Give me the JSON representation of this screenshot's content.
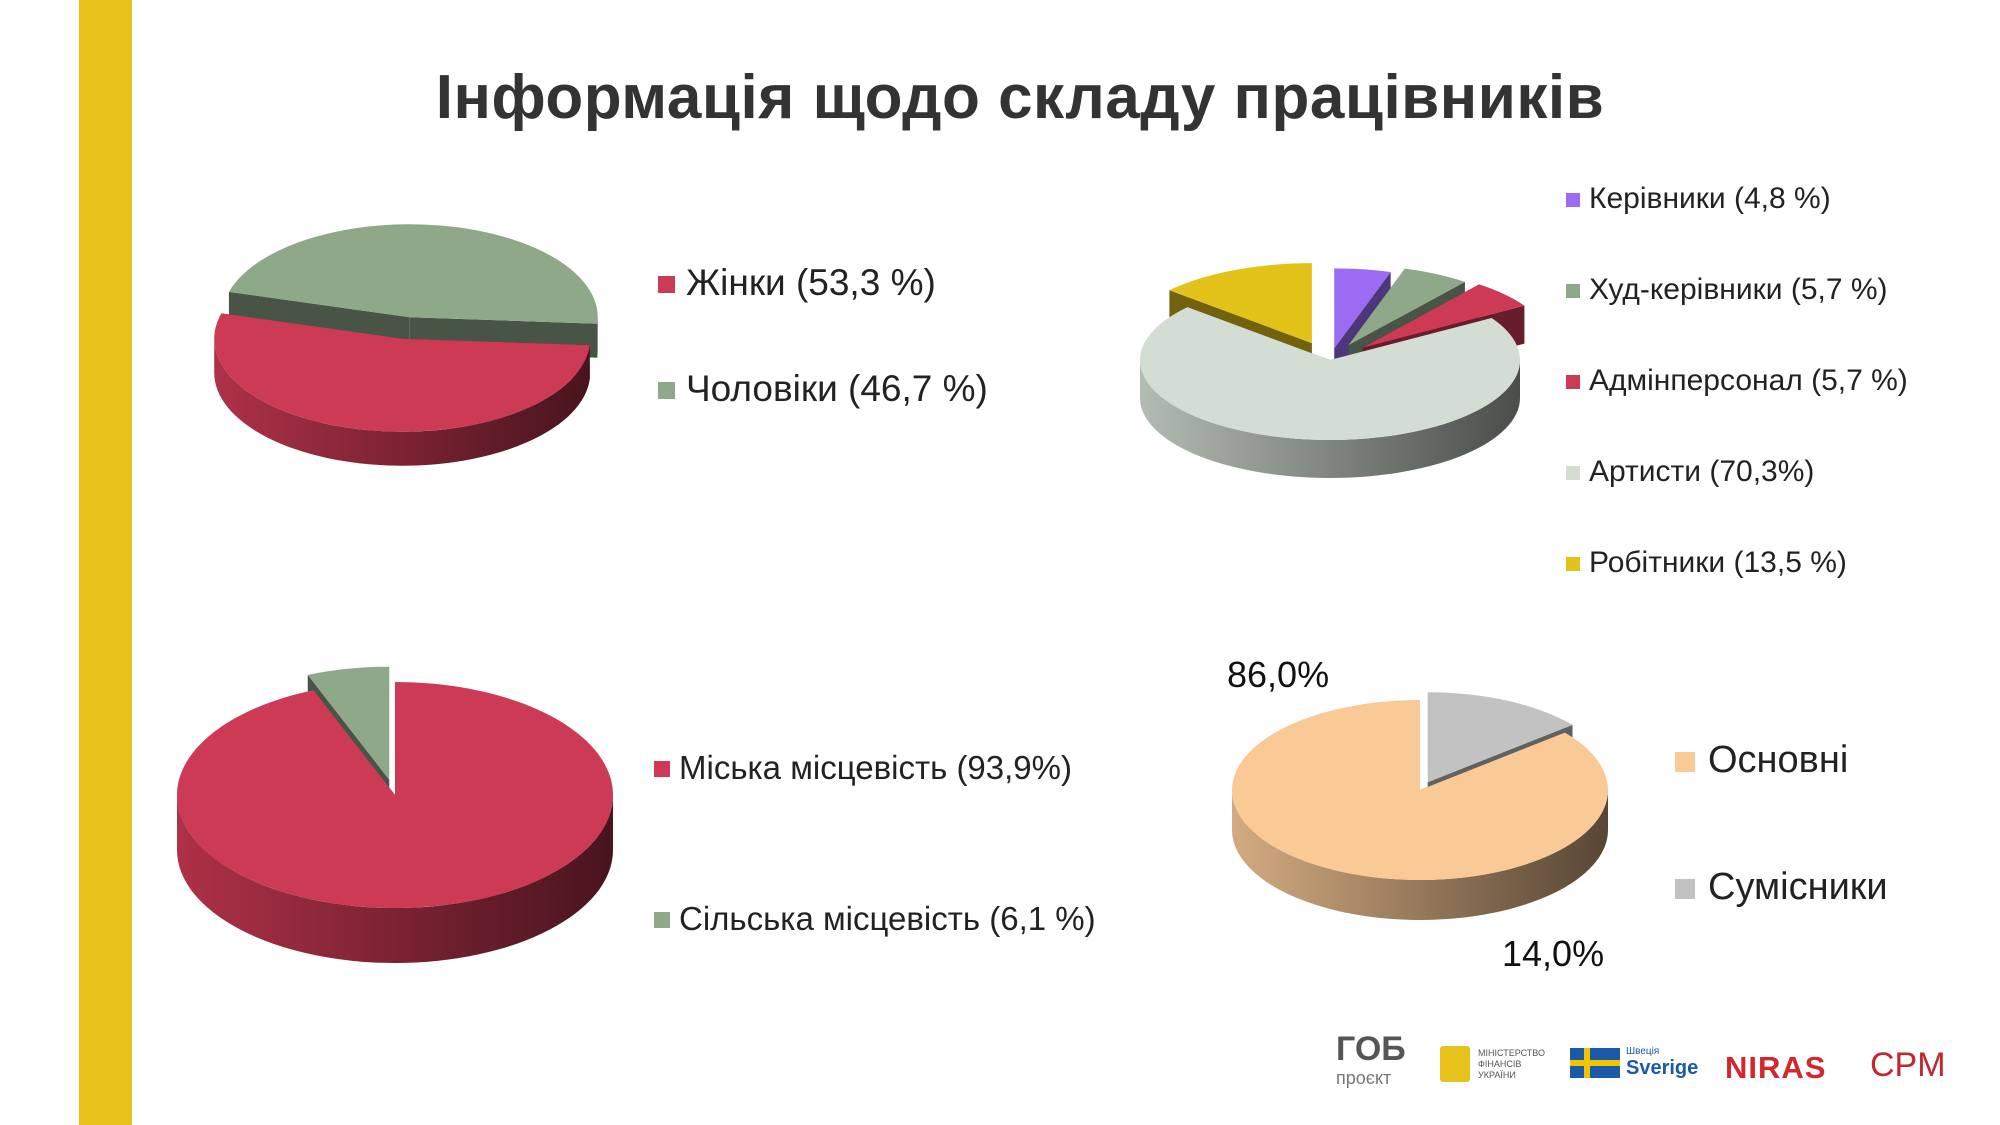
{
  "title": "Інформація щодо складу працівників",
  "chart_data": [
    {
      "type": "pie",
      "title": "",
      "slices": [
        {
          "label": "Жінки (53,3 %)",
          "value": 53.3,
          "color": "#cd3a55"
        },
        {
          "label": "Чоловіки  (46,7 %)",
          "value": 46.7,
          "color": "#8fa889"
        }
      ],
      "legend_position": "right"
    },
    {
      "type": "pie",
      "title": "",
      "slices": [
        {
          "label": "Керівники (4,8 %)",
          "value": 4.8,
          "color": "#9b6cf3"
        },
        {
          "label": "Худ-керівники (5,7 %)",
          "value": 5.7,
          "color": "#8fa889"
        },
        {
          "label": "Адмінперсонал (5,7 %)",
          "value": 5.7,
          "color": "#cd3a55"
        },
        {
          "label": "Артисти (70,3%)",
          "value": 70.3,
          "color": "#d3ddd3"
        },
        {
          "label": "Робітники (13,5 %)",
          "value": 13.5,
          "color": "#e3c21a"
        }
      ],
      "legend_position": "right"
    },
    {
      "type": "pie",
      "title": "",
      "slices": [
        {
          "label": "Міська місцевість (93,9%)",
          "value": 93.9,
          "color": "#cd3a55"
        },
        {
          "label": "Сільська місцевість (6,1 %)",
          "value": 6.1,
          "color": "#8fa889"
        }
      ],
      "legend_position": "right"
    },
    {
      "type": "pie",
      "title": "",
      "slices": [
        {
          "label": "Основні",
          "value": 86.0,
          "color": "#f9c996",
          "data_label": "86,0%"
        },
        {
          "label": "Сумісники",
          "value": 14.0,
          "color": "#c2c2c2",
          "data_label": "14,0%"
        }
      ],
      "legend_position": "right"
    }
  ],
  "logos": {
    "gob": "ГОБ",
    "gob_sub": "проєкт",
    "ministry": "МІНІСТЕРСТВО ФІНАНСІВ УКРАЇНИ",
    "sweden_small": "Швеція",
    "sverige": "Sverige",
    "niras": "NIRAS",
    "cpm": "CPM"
  },
  "colors": {
    "accent": "#e6c21a"
  }
}
